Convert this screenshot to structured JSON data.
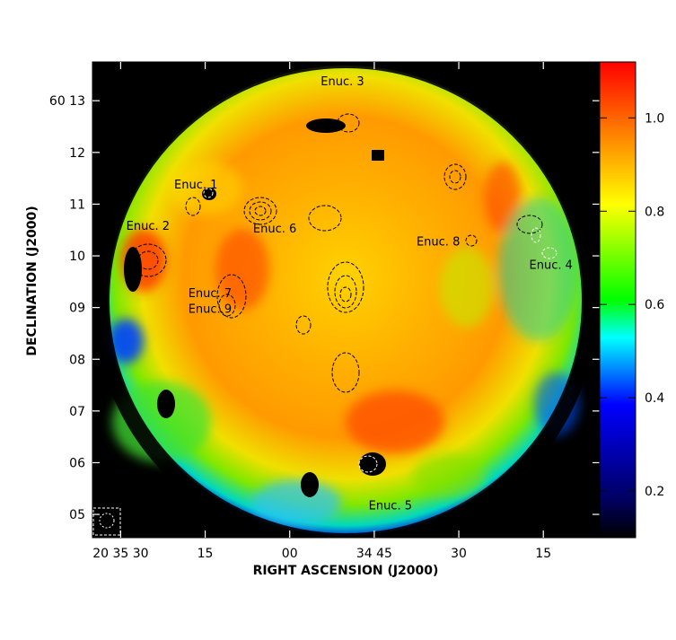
{
  "chart_data": {
    "type": "heatmap",
    "title": "",
    "xlabel": "RIGHT ASCENSION (J2000)",
    "ylabel": "DECLINATION (J2000)",
    "x_ticks": [
      {
        "ra_sec": 90,
        "label": "20 35 30"
      },
      {
        "ra_sec": 75,
        "label": "15"
      },
      {
        "ra_sec": 60,
        "label": "00"
      },
      {
        "ra_sec": 45,
        "label": "34 45"
      },
      {
        "ra_sec": 30,
        "label": "30"
      },
      {
        "ra_sec": 15,
        "label": "15"
      }
    ],
    "y_ticks": [
      {
        "dec_min": 13,
        "label": "60 13"
      },
      {
        "dec_min": 12,
        "label": "12"
      },
      {
        "dec_min": 11,
        "label": "11"
      },
      {
        "dec_min": 10,
        "label": "10"
      },
      {
        "dec_min": 9,
        "label": "09"
      },
      {
        "dec_min": 8,
        "label": "08"
      },
      {
        "dec_min": 7,
        "label": "07"
      },
      {
        "dec_min": 6,
        "label": "06"
      },
      {
        "dec_min": 5,
        "label": "05"
      }
    ],
    "x_range_ra_sec": [
      95,
      5
    ],
    "y_range_dec_min": [
      4.55,
      13.75
    ],
    "colorbar": {
      "range": [
        0.1,
        1.12
      ],
      "ticks": [
        {
          "value": 0.2,
          "label": "0.2"
        },
        {
          "value": 0.4,
          "label": "0.4"
        },
        {
          "value": 0.6,
          "label": "0.6"
        },
        {
          "value": 0.8,
          "label": "0.8"
        },
        {
          "value": 1.0,
          "label": "1.0"
        }
      ],
      "colors": [
        "#000000",
        "#0000ff",
        "#00ffff",
        "#00ff00",
        "#ffff00",
        "#ff8000",
        "#ff0000"
      ]
    },
    "annotations": [
      {
        "label": "Enuc. 1",
        "ra_sec": 80.5,
        "dec_min": 11.3
      },
      {
        "label": "Enuc. 2",
        "ra_sec": 89,
        "dec_min": 10.5
      },
      {
        "label": "Enuc. 3",
        "ra_sec": 54.5,
        "dec_min": 13.3
      },
      {
        "label": "Enuc. 4",
        "ra_sec": 17.5,
        "dec_min": 9.75
      },
      {
        "label": "Enuc. 5",
        "ra_sec": 46,
        "dec_min": 5.1
      },
      {
        "label": "Enuc. 6",
        "ra_sec": 66.5,
        "dec_min": 10.45
      },
      {
        "label": "Enuc. 7",
        "ra_sec": 78,
        "dec_min": 9.2
      },
      {
        "label": "Enuc. 8",
        "ra_sec": 37.5,
        "dec_min": 10.2
      },
      {
        "label": "Enuc. 9",
        "ra_sec": 78,
        "dec_min": 8.9
      }
    ],
    "grid": false
  }
}
